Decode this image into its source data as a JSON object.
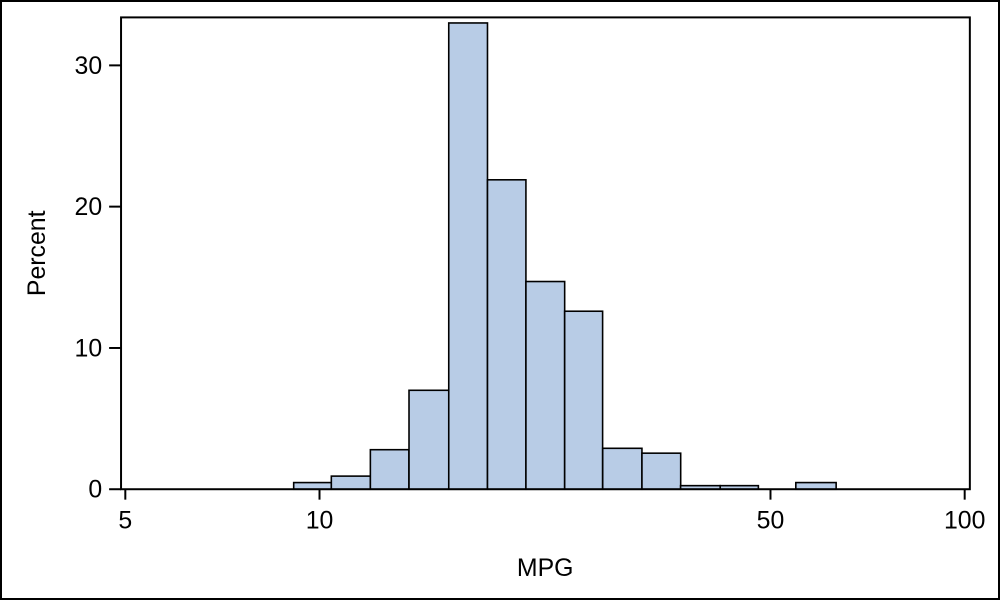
{
  "style": {
    "background": "#FFFFFF",
    "border_color": "#000000",
    "axis_color": "#000000",
    "text_color": "#000000",
    "bar_fill": "#B8CCE6",
    "bar_stroke": "#000000"
  },
  "chart_data": {
    "type": "bar",
    "subtype": "histogram",
    "title": "",
    "xlabel": "MPG",
    "ylabel": "Percent",
    "x_scale": "log10",
    "grid": false,
    "legend": false,
    "x_ticks": [
      5,
      10,
      50,
      100
    ],
    "x_tick_labels": [
      "5",
      "10",
      "50",
      "100"
    ],
    "y_ticks": [
      0,
      10,
      20,
      30
    ],
    "y_tick_labels": [
      "0",
      "10",
      "20",
      "30"
    ],
    "x_range": [
      4.92,
      101.9
    ],
    "ylim": [
      0,
      33.4
    ],
    "bins": [
      {
        "x0": 9.12,
        "x1": 10.43,
        "percent": 0.47
      },
      {
        "x0": 10.43,
        "x1": 11.99,
        "percent": 0.93
      },
      {
        "x0": 11.99,
        "x1": 13.76,
        "percent": 2.8
      },
      {
        "x0": 13.76,
        "x1": 15.86,
        "percent": 7.0
      },
      {
        "x0": 15.86,
        "x1": 18.21,
        "percent": 33.0
      },
      {
        "x0": 18.21,
        "x1": 20.89,
        "percent": 21.9
      },
      {
        "x0": 20.89,
        "x1": 23.99,
        "percent": 14.7
      },
      {
        "x0": 23.99,
        "x1": 27.47,
        "percent": 12.6
      },
      {
        "x0": 27.47,
        "x1": 31.6,
        "percent": 2.9
      },
      {
        "x0": 31.6,
        "x1": 36.28,
        "percent": 2.55
      },
      {
        "x0": 36.28,
        "x1": 41.79,
        "percent": 0.25
      },
      {
        "x0": 41.79,
        "x1": 47.88,
        "percent": 0.25
      },
      {
        "x0": 47.88,
        "x1": 54.73,
        "percent": 0.0
      },
      {
        "x0": 54.73,
        "x1": 63.2,
        "percent": 0.47
      }
    ]
  }
}
